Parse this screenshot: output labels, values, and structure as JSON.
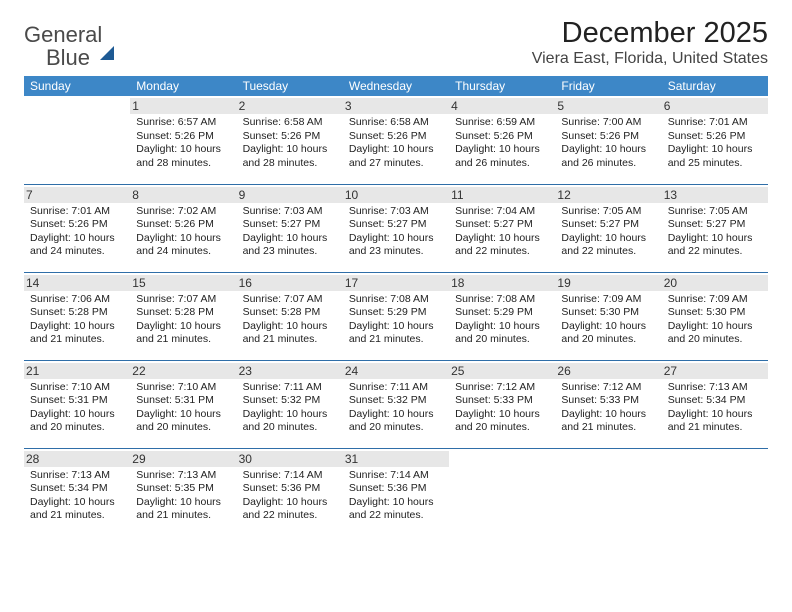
{
  "brand": {
    "word1": "General",
    "word2": "Blue"
  },
  "title": "December 2025",
  "subtitle": "Viera East, Florida, United States",
  "colors": {
    "header_bg": "#3d87c7",
    "header_text": "#ffffff",
    "row_divider": "#2f6ea8",
    "daynum_bg": "#e7e7e7",
    "brand_gray": "#4a4a4a",
    "brand_blue": "#2a7abf"
  },
  "weekdays": [
    "Sunday",
    "Monday",
    "Tuesday",
    "Wednesday",
    "Thursday",
    "Friday",
    "Saturday"
  ],
  "weeks": [
    [
      {
        "n": "",
        "sr": "",
        "ss": "",
        "dl": ""
      },
      {
        "n": "1",
        "sr": "6:57 AM",
        "ss": "5:26 PM",
        "dl": "10 hours and 28 minutes."
      },
      {
        "n": "2",
        "sr": "6:58 AM",
        "ss": "5:26 PM",
        "dl": "10 hours and 28 minutes."
      },
      {
        "n": "3",
        "sr": "6:58 AM",
        "ss": "5:26 PM",
        "dl": "10 hours and 27 minutes."
      },
      {
        "n": "4",
        "sr": "6:59 AM",
        "ss": "5:26 PM",
        "dl": "10 hours and 26 minutes."
      },
      {
        "n": "5",
        "sr": "7:00 AM",
        "ss": "5:26 PM",
        "dl": "10 hours and 26 minutes."
      },
      {
        "n": "6",
        "sr": "7:01 AM",
        "ss": "5:26 PM",
        "dl": "10 hours and 25 minutes."
      }
    ],
    [
      {
        "n": "7",
        "sr": "7:01 AM",
        "ss": "5:26 PM",
        "dl": "10 hours and 24 minutes."
      },
      {
        "n": "8",
        "sr": "7:02 AM",
        "ss": "5:26 PM",
        "dl": "10 hours and 24 minutes."
      },
      {
        "n": "9",
        "sr": "7:03 AM",
        "ss": "5:27 PM",
        "dl": "10 hours and 23 minutes."
      },
      {
        "n": "10",
        "sr": "7:03 AM",
        "ss": "5:27 PM",
        "dl": "10 hours and 23 minutes."
      },
      {
        "n": "11",
        "sr": "7:04 AM",
        "ss": "5:27 PM",
        "dl": "10 hours and 22 minutes."
      },
      {
        "n": "12",
        "sr": "7:05 AM",
        "ss": "5:27 PM",
        "dl": "10 hours and 22 minutes."
      },
      {
        "n": "13",
        "sr": "7:05 AM",
        "ss": "5:27 PM",
        "dl": "10 hours and 22 minutes."
      }
    ],
    [
      {
        "n": "14",
        "sr": "7:06 AM",
        "ss": "5:28 PM",
        "dl": "10 hours and 21 minutes."
      },
      {
        "n": "15",
        "sr": "7:07 AM",
        "ss": "5:28 PM",
        "dl": "10 hours and 21 minutes."
      },
      {
        "n": "16",
        "sr": "7:07 AM",
        "ss": "5:28 PM",
        "dl": "10 hours and 21 minutes."
      },
      {
        "n": "17",
        "sr": "7:08 AM",
        "ss": "5:29 PM",
        "dl": "10 hours and 21 minutes."
      },
      {
        "n": "18",
        "sr": "7:08 AM",
        "ss": "5:29 PM",
        "dl": "10 hours and 20 minutes."
      },
      {
        "n": "19",
        "sr": "7:09 AM",
        "ss": "5:30 PM",
        "dl": "10 hours and 20 minutes."
      },
      {
        "n": "20",
        "sr": "7:09 AM",
        "ss": "5:30 PM",
        "dl": "10 hours and 20 minutes."
      }
    ],
    [
      {
        "n": "21",
        "sr": "7:10 AM",
        "ss": "5:31 PM",
        "dl": "10 hours and 20 minutes."
      },
      {
        "n": "22",
        "sr": "7:10 AM",
        "ss": "5:31 PM",
        "dl": "10 hours and 20 minutes."
      },
      {
        "n": "23",
        "sr": "7:11 AM",
        "ss": "5:32 PM",
        "dl": "10 hours and 20 minutes."
      },
      {
        "n": "24",
        "sr": "7:11 AM",
        "ss": "5:32 PM",
        "dl": "10 hours and 20 minutes."
      },
      {
        "n": "25",
        "sr": "7:12 AM",
        "ss": "5:33 PM",
        "dl": "10 hours and 20 minutes."
      },
      {
        "n": "26",
        "sr": "7:12 AM",
        "ss": "5:33 PM",
        "dl": "10 hours and 21 minutes."
      },
      {
        "n": "27",
        "sr": "7:13 AM",
        "ss": "5:34 PM",
        "dl": "10 hours and 21 minutes."
      }
    ],
    [
      {
        "n": "28",
        "sr": "7:13 AM",
        "ss": "5:34 PM",
        "dl": "10 hours and 21 minutes."
      },
      {
        "n": "29",
        "sr": "7:13 AM",
        "ss": "5:35 PM",
        "dl": "10 hours and 21 minutes."
      },
      {
        "n": "30",
        "sr": "7:14 AM",
        "ss": "5:36 PM",
        "dl": "10 hours and 22 minutes."
      },
      {
        "n": "31",
        "sr": "7:14 AM",
        "ss": "5:36 PM",
        "dl": "10 hours and 22 minutes."
      },
      {
        "n": "",
        "sr": "",
        "ss": "",
        "dl": ""
      },
      {
        "n": "",
        "sr": "",
        "ss": "",
        "dl": ""
      },
      {
        "n": "",
        "sr": "",
        "ss": "",
        "dl": ""
      }
    ]
  ],
  "labels": {
    "sunrise": "Sunrise: ",
    "sunset": "Sunset: ",
    "daylight": "Daylight: "
  }
}
